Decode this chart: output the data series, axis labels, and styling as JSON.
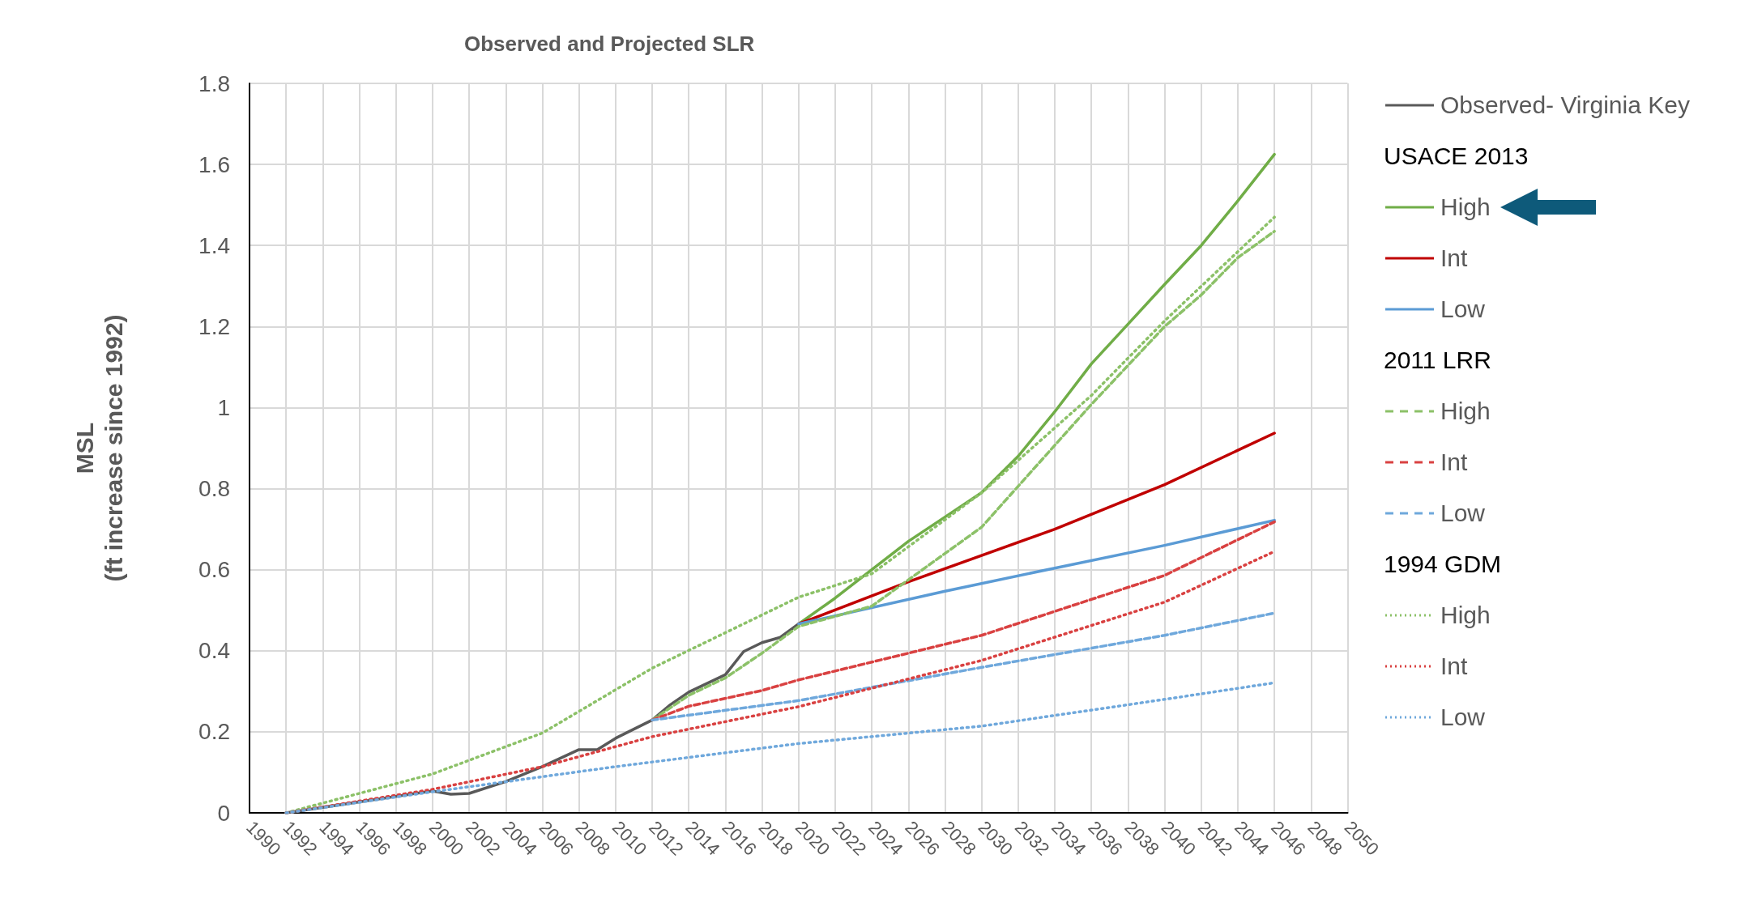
{
  "chart_data": {
    "type": "line",
    "title": "Observed and Projected SLR",
    "ylabel": "MSL\n(ft increase since 1992)",
    "xlim": [
      1990,
      2050
    ],
    "xticks": [
      1990,
      1992,
      1994,
      1996,
      1998,
      2000,
      2002,
      2004,
      2006,
      2008,
      2010,
      2012,
      2014,
      2016,
      2018,
      2020,
      2022,
      2024,
      2026,
      2028,
      2030,
      2032,
      2034,
      2036,
      2038,
      2040,
      2042,
      2044,
      2046,
      2048,
      2050
    ],
    "ylim": [
      0,
      1.8
    ],
    "yticks": [
      0,
      0.2,
      0.4,
      0.6,
      0.8,
      1,
      1.2,
      1.4,
      1.6,
      1.8
    ],
    "grid": true,
    "legend": "right",
    "marker": "none",
    "annotations": [
      "USACE 2013",
      "2011 LRR",
      "1994 GDM"
    ],
    "series": [
      {
        "name": "Observed- Virginia Key",
        "color": "#595959",
        "line_style": "solid",
        "x": [
          1992,
          2000,
          2001,
          2002,
          2004,
          2006,
          2008,
          2009,
          2010,
          2012,
          2013,
          2014,
          2016,
          2017,
          2018,
          2019,
          2020
        ],
        "values": [
          0,
          0.054,
          0.046,
          0.048,
          0.077,
          0.114,
          0.156,
          0.156,
          0.184,
          0.229,
          0.267,
          0.298,
          0.341,
          0.398,
          0.42,
          0.433,
          0.466
        ]
      },
      {
        "name": "High",
        "color": "#70ad47",
        "line_style": "solid",
        "x": [
          2020,
          2022,
          2024,
          2026,
          2028,
          2030,
          2032,
          2034,
          2036,
          2038,
          2040,
          2042,
          2044,
          2046
        ],
        "values": [
          0.466,
          0.53,
          0.6,
          0.67,
          0.73,
          0.79,
          0.88,
          0.99,
          1.108,
          1.206,
          1.304,
          1.4,
          1.51,
          1.625
        ]
      },
      {
        "name": "Int",
        "color": "#c00000",
        "line_style": "solid",
        "x": [
          2020,
          2026,
          2034,
          2040,
          2046
        ],
        "values": [
          0.466,
          0.57,
          0.7,
          0.81,
          0.937
        ]
      },
      {
        "name": "Low",
        "color": "#5b9bd5",
        "line_style": "solid",
        "x": [
          2020,
          2028,
          2034,
          2040,
          2046
        ],
        "values": [
          0.466,
          0.547,
          0.604,
          0.66,
          0.722
        ]
      },
      {
        "name": "High",
        "color": "#8cc168",
        "line_style": "dashed",
        "x": [
          2012,
          2014,
          2016,
          2018,
          2020,
          2024,
          2030,
          2036,
          2040,
          2042,
          2044,
          2046
        ],
        "values": [
          0.229,
          0.29,
          0.333,
          0.394,
          0.46,
          0.51,
          0.705,
          1.008,
          1.2,
          1.278,
          1.37,
          1.435
        ]
      },
      {
        "name": "Int",
        "color": "#d94141",
        "line_style": "dashed",
        "x": [
          2012,
          2014,
          2018,
          2020,
          2030,
          2040,
          2046
        ],
        "values": [
          0.229,
          0.263,
          0.302,
          0.328,
          0.438,
          0.586,
          0.718
        ]
      },
      {
        "name": "Low",
        "color": "#6fa8dc",
        "line_style": "dashed",
        "x": [
          2012,
          2020,
          2030,
          2040,
          2046
        ],
        "values": [
          0.229,
          0.277,
          0.359,
          0.438,
          0.493
        ]
      },
      {
        "name": "High",
        "color": "#8cc168",
        "line_style": "dotted",
        "x": [
          1992,
          2000,
          2006,
          2012,
          2020,
          2024,
          2030,
          2036,
          2040,
          2046
        ],
        "values": [
          0,
          0.096,
          0.197,
          0.357,
          0.532,
          0.59,
          0.79,
          1.03,
          1.214,
          1.47
        ]
      },
      {
        "name": "Int",
        "color": "#d94141",
        "line_style": "dotted",
        "x": [
          1992,
          2000,
          2006,
          2012,
          2020,
          2030,
          2040,
          2046
        ],
        "values": [
          0,
          0.058,
          0.114,
          0.188,
          0.262,
          0.376,
          0.52,
          0.645
        ]
      },
      {
        "name": "Low",
        "color": "#6fa8dc",
        "line_style": "dotted",
        "x": [
          1992,
          2000,
          2010,
          2020,
          2030,
          2040,
          2046
        ],
        "values": [
          0,
          0.052,
          0.114,
          0.171,
          0.214,
          0.28,
          0.321
        ]
      }
    ]
  }
}
